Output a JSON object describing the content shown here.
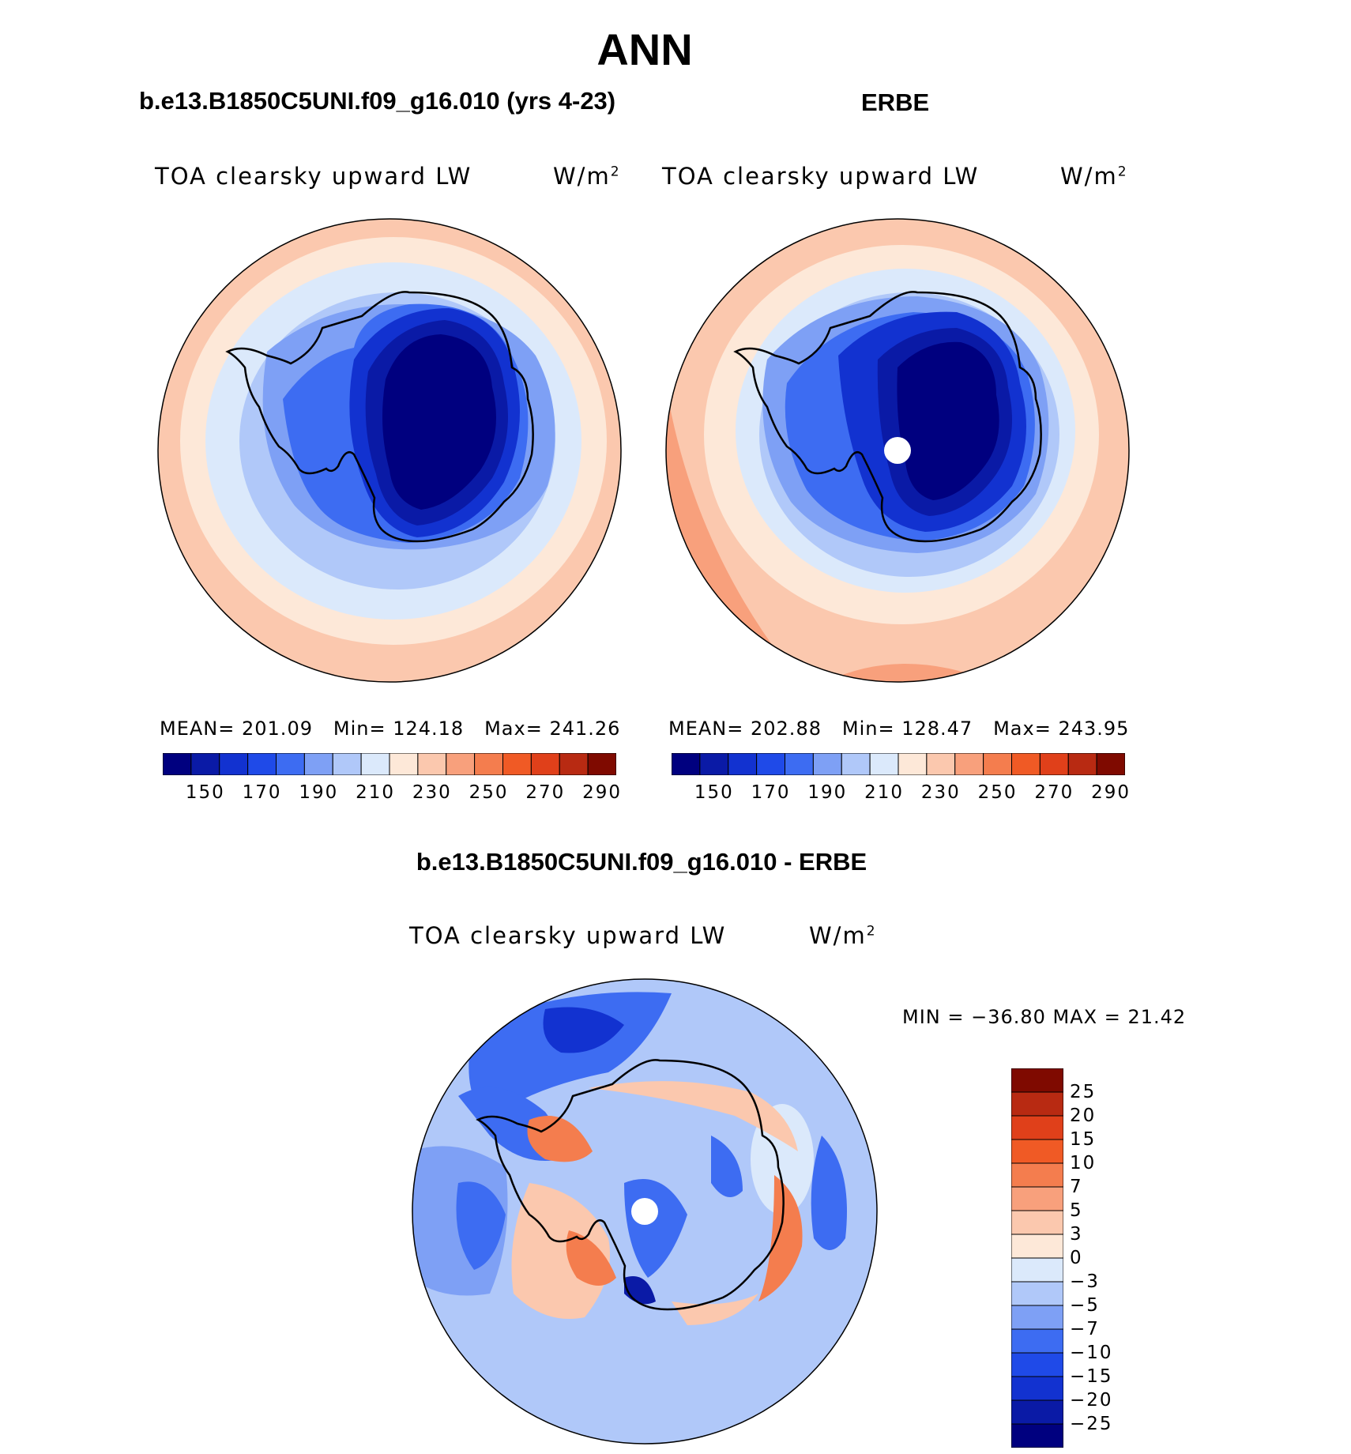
{
  "page": {
    "title": "ANN",
    "left_panel_title": "b.e13.B1850C5UNI.f09_g16.010 (yrs 4-23)",
    "right_panel_title": "ERBE",
    "diff_panel_title": "b.e13.B1850C5UNI.f09_g16.010 - ERBE"
  },
  "left_map": {
    "variable": "TOA clearsky upward LW",
    "units": "W/m",
    "units_sup": "2",
    "mean_label": "MEAN=",
    "mean": "201.09",
    "min_label": "Min=",
    "min": "124.18",
    "max_label": "Max=",
    "max": "241.26"
  },
  "right_map": {
    "variable": "TOA clearsky upward LW",
    "units": "W/m",
    "units_sup": "2",
    "mean_label": "MEAN=",
    "mean": "202.88",
    "min_label": "Min=",
    "min": "128.47",
    "max_label": "Max=",
    "max": "243.95"
  },
  "diff_map": {
    "variable": "TOA clearsky upward LW",
    "units": "W/m",
    "units_sup": "2",
    "minmax_text": "MIN = −36.80 MAX =  21.42"
  },
  "colorbar_main": {
    "tick_labels": [
      "150",
      "170",
      "190",
      "210",
      "230",
      "250",
      "270",
      "290"
    ],
    "colors": [
      "#00007f",
      "#0a1aa6",
      "#1232d0",
      "#1f4ae8",
      "#3d6cf2",
      "#7ea0f5",
      "#b0c8f9",
      "#dbe9fb",
      "#fde8d8",
      "#fbc8ae",
      "#f8a07c",
      "#f47d4e",
      "#f05a25",
      "#e0401a",
      "#b82a12",
      "#7f0a00"
    ]
  },
  "colorbar_diff": {
    "tick_labels": [
      "25",
      "20",
      "15",
      "10",
      "7",
      "5",
      "3",
      "0",
      "−3",
      "−5",
      "−7",
      "−10",
      "−15",
      "−20",
      "−25"
    ],
    "colors": [
      "#7f0a00",
      "#b82a12",
      "#e0401a",
      "#f05a25",
      "#f47d4e",
      "#f8a07c",
      "#fbc8ae",
      "#fde8d8",
      "#dbe9fb",
      "#b0c8f9",
      "#7ea0f5",
      "#3d6cf2",
      "#1f4ae8",
      "#1232d0",
      "#0a1aa6",
      "#00007f"
    ]
  },
  "chart_data": [
    {
      "type": "heatmap",
      "title": "b.e13.B1850C5UNI.f09_g16.010 (yrs 4-23)",
      "projection": "south polar stereographic",
      "colorbar_levels": [
        150,
        170,
        190,
        210,
        230,
        250,
        270,
        290
      ],
      "mean": 201.09,
      "min": 124.18,
      "max": 241.26
    },
    {
      "type": "heatmap",
      "title": "ERBE",
      "projection": "south polar stereographic",
      "colorbar_levels": [
        150,
        170,
        190,
        210,
        230,
        250,
        270,
        290
      ],
      "mean": 202.88,
      "min": 128.47,
      "max": 243.95
    },
    {
      "type": "heatmap",
      "title": "b.e13.B1850C5UNI.f09_g16.010 - ERBE",
      "projection": "south polar stereographic",
      "colorbar_levels": [
        25,
        20,
        15,
        10,
        7,
        5,
        3,
        0,
        -3,
        -5,
        -7,
        -10,
        -15,
        -20,
        -25
      ],
      "min": -36.8,
      "max": 21.42
    }
  ]
}
